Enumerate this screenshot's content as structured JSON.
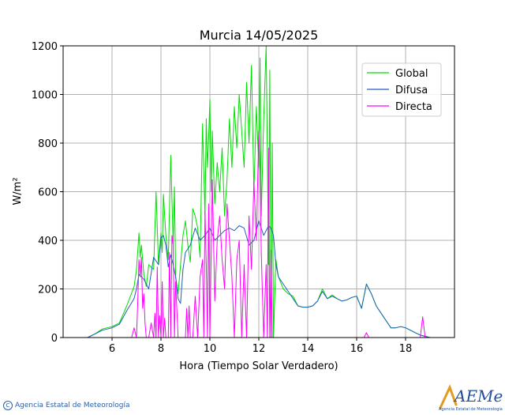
{
  "chart_data": {
    "type": "line",
    "title": "Murcia 14/05/2025",
    "xlabel": "Hora (Tiempo Solar Verdadero)",
    "ylabel": "W/m²",
    "xlim": [
      4,
      20
    ],
    "ylim": [
      0,
      1200
    ],
    "xticks": [
      6,
      8,
      10,
      12,
      14,
      16,
      18
    ],
    "yticks": [
      0,
      200,
      400,
      600,
      800,
      1000,
      1200
    ],
    "grid": true,
    "legend_position": "top-right",
    "series": [
      {
        "name": "Global",
        "color": "#00dd00",
        "x": [
          4.0,
          5.0,
          5.3,
          5.6,
          6.0,
          6.3,
          6.6,
          6.9,
          7.0,
          7.1,
          7.15,
          7.2,
          7.3,
          7.4,
          7.5,
          7.7,
          7.8,
          7.9,
          8.0,
          8.05,
          8.1,
          8.2,
          8.3,
          8.4,
          8.5,
          8.55,
          8.6,
          8.7,
          8.8,
          8.9,
          9.0,
          9.1,
          9.2,
          9.3,
          9.4,
          9.5,
          9.6,
          9.7,
          9.8,
          9.85,
          9.9,
          9.95,
          10.0,
          10.05,
          10.1,
          10.15,
          10.2,
          10.3,
          10.4,
          10.5,
          10.6,
          10.7,
          10.8,
          10.9,
          11.0,
          11.1,
          11.2,
          11.3,
          11.4,
          11.5,
          11.6,
          11.7,
          11.8,
          11.9,
          12.0,
          12.05,
          12.1,
          12.2,
          12.3,
          12.4,
          12.45,
          12.5,
          12.55,
          12.6,
          12.7,
          12.8,
          13.0,
          13.2,
          13.4,
          13.6,
          13.8,
          14.0,
          14.2,
          14.4,
          14.6,
          14.8,
          15.0,
          15.2,
          15.4,
          15.6,
          15.8,
          16.0,
          16.2,
          16.4,
          16.6,
          16.8,
          17.0,
          17.2,
          17.4,
          17.6,
          17.8,
          18.0,
          18.2,
          18.4,
          18.6,
          18.8,
          19.0,
          20.0
        ],
        "values": [
          0,
          0,
          15,
          35,
          45,
          60,
          130,
          210,
          280,
          430,
          330,
          380,
          260,
          210,
          300,
          280,
          600,
          300,
          430,
          350,
          590,
          420,
          320,
          750,
          380,
          620,
          250,
          180,
          300,
          420,
          480,
          380,
          310,
          530,
          500,
          450,
          330,
          880,
          500,
          900,
          700,
          820,
          980,
          600,
          850,
          700,
          550,
          720,
          600,
          780,
          500,
          650,
          900,
          700,
          950,
          780,
          1000,
          850,
          700,
          1050,
          800,
          1120,
          600,
          950,
          700,
          1150,
          500,
          900,
          1200,
          300,
          1100,
          0,
          800,
          0,
          320,
          250,
          200,
          180,
          170,
          130,
          125,
          125,
          130,
          150,
          200,
          160,
          175,
          160,
          150,
          155,
          165,
          170,
          120,
          220,
          180,
          130,
          100,
          70,
          40,
          40,
          45,
          40,
          30,
          20,
          10,
          5,
          0,
          0
        ]
      },
      {
        "name": "Difusa",
        "color": "#1f5fbf",
        "x": [
          4.0,
          5.0,
          5.3,
          5.6,
          6.0,
          6.3,
          6.6,
          6.9,
          7.0,
          7.1,
          7.2,
          7.3,
          7.5,
          7.7,
          7.9,
          8.0,
          8.1,
          8.2,
          8.3,
          8.4,
          8.5,
          8.6,
          8.7,
          8.8,
          8.9,
          9.0,
          9.2,
          9.4,
          9.6,
          9.8,
          10.0,
          10.2,
          10.4,
          10.6,
          10.8,
          11.0,
          11.2,
          11.4,
          11.6,
          11.8,
          12.0,
          12.2,
          12.4,
          12.5,
          12.6,
          12.7,
          12.8,
          13.0,
          13.2,
          13.4,
          13.6,
          13.8,
          14.0,
          14.2,
          14.4,
          14.6,
          14.8,
          15.0,
          15.2,
          15.4,
          15.6,
          15.8,
          16.0,
          16.2,
          16.4,
          16.6,
          16.8,
          17.0,
          17.2,
          17.4,
          17.6,
          17.8,
          18.0,
          18.2,
          18.4,
          18.6,
          18.8,
          19.0,
          20.0
        ],
        "values": [
          0,
          0,
          15,
          30,
          40,
          55,
          110,
          160,
          200,
          260,
          250,
          240,
          200,
          330,
          300,
          410,
          420,
          380,
          290,
          340,
          300,
          250,
          160,
          140,
          280,
          350,
          380,
          450,
          400,
          420,
          450,
          400,
          420,
          440,
          450,
          440,
          460,
          450,
          380,
          400,
          480,
          420,
          460,
          450,
          420,
          300,
          250,
          220,
          190,
          160,
          130,
          125,
          125,
          130,
          150,
          190,
          160,
          170,
          160,
          150,
          155,
          165,
          170,
          120,
          220,
          180,
          130,
          100,
          70,
          40,
          40,
          45,
          40,
          30,
          20,
          10,
          5,
          0,
          0
        ]
      },
      {
        "name": "Directa",
        "color": "#ff00ff",
        "x": [
          4.0,
          6.8,
          6.9,
          7.0,
          7.05,
          7.1,
          7.15,
          7.2,
          7.25,
          7.3,
          7.35,
          7.4,
          7.5,
          7.6,
          7.7,
          7.75,
          7.8,
          7.85,
          7.9,
          7.95,
          8.0,
          8.05,
          8.1,
          8.15,
          8.2,
          8.3,
          8.35,
          8.4,
          8.45,
          8.5,
          8.55,
          8.6,
          8.7,
          8.8,
          8.9,
          9.0,
          9.05,
          9.1,
          9.15,
          9.2,
          9.3,
          9.4,
          9.5,
          9.6,
          9.7,
          9.75,
          9.8,
          9.85,
          9.9,
          9.95,
          10.0,
          10.05,
          10.1,
          10.2,
          10.3,
          10.4,
          10.5,
          10.6,
          10.7,
          10.8,
          10.9,
          11.0,
          11.1,
          11.2,
          11.3,
          11.4,
          11.5,
          11.6,
          11.7,
          11.8,
          11.9,
          12.0,
          12.05,
          12.1,
          12.2,
          12.3,
          12.35,
          12.4,
          12.45,
          12.5,
          12.55,
          12.6,
          12.7,
          13.0,
          16.3,
          16.4,
          16.5,
          18.6,
          18.7,
          18.8,
          20.0
        ],
        "values": [
          0,
          0,
          40,
          0,
          150,
          320,
          250,
          330,
          120,
          180,
          60,
          0,
          0,
          60,
          0,
          100,
          0,
          290,
          0,
          90,
          0,
          230,
          0,
          80,
          0,
          0,
          350,
          0,
          420,
          380,
          0,
          230,
          0,
          0,
          0,
          0,
          120,
          0,
          130,
          0,
          0,
          170,
          0,
          250,
          320,
          0,
          520,
          300,
          0,
          550,
          0,
          340,
          650,
          150,
          400,
          500,
          320,
          200,
          550,
          400,
          250,
          0,
          320,
          400,
          0,
          300,
          0,
          500,
          280,
          640,
          400,
          850,
          700,
          350,
          0,
          300,
          0,
          780,
          0,
          360,
          0,
          0,
          0,
          0,
          0,
          20,
          0,
          0,
          85,
          0,
          0
        ]
      }
    ]
  },
  "footer": {
    "agency": "Agencia Estatal de Meteorología",
    "copyright_symbol": "C",
    "logo_text": "AEMet",
    "logo_subtext": "Agencia Estatal de Meteorología"
  }
}
